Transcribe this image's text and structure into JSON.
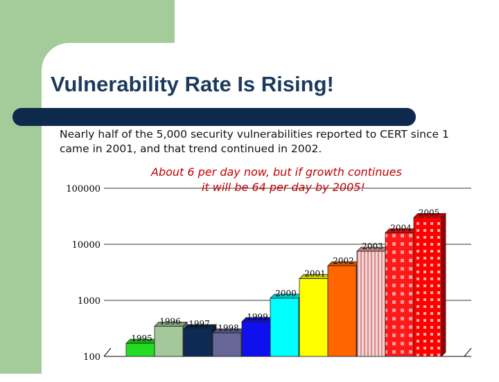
{
  "slide": {
    "title": "Vulnerability Rate Is Rising!",
    "body_lines": [
      "Nearly half of the 5,000 security vulnerabilities reported to CERT since 1",
      "came in 2001, and that trend continued in 2002."
    ],
    "annotation_lines": [
      "About 6 per day now, but if growth continues",
      "it will be 64 per day by 2005!"
    ]
  },
  "colors": {
    "background_green": "#a3cc9a",
    "title_text": "#1b3a5e",
    "title_bar": "#0d2a4d",
    "annotation_text": "#c00000"
  },
  "chart_data": {
    "type": "bar",
    "title": "",
    "xlabel": "",
    "ylabel": "",
    "y_scale": "log",
    "ylim": [
      100,
      100000
    ],
    "y_tick_labels": [
      "100000",
      "10000",
      "1000",
      "100"
    ],
    "grid": true,
    "categories": [
      "1995",
      "1996",
      "1997",
      "1998",
      "1999",
      "2000",
      "2001",
      "2002",
      "2003",
      "2004",
      "2005"
    ],
    "values": [
      171,
      345,
      311,
      262,
      417,
      1090,
      2437,
      4129,
      7500,
      16000,
      30000
    ],
    "bar_colors": [
      "#22dd22",
      "#a3c99a",
      "#0d2a55",
      "#666699",
      "#1010ee",
      "#00ffff",
      "#ffff00",
      "#ff6600",
      "#e8a0a0",
      "#ff1010",
      "#ff0000"
    ],
    "patterned_bars": [
      "2003",
      "2004",
      "2005"
    ]
  }
}
